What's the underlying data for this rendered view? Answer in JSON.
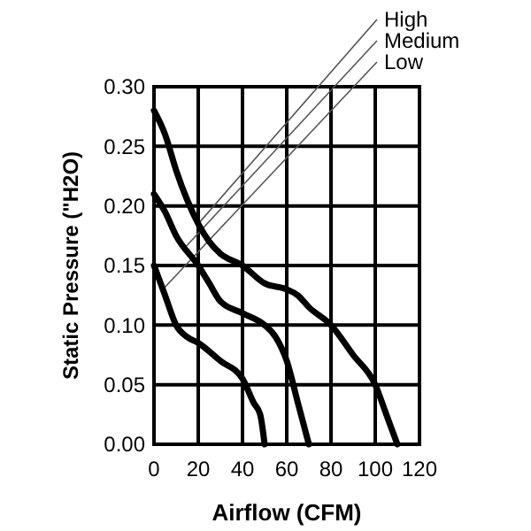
{
  "chart_data": {
    "type": "line",
    "xlabel": "Airflow (CFM)",
    "ylabel": "Static Pressure (\"H2O)",
    "xlim": [
      0,
      120
    ],
    "xticks": [
      0,
      20,
      40,
      60,
      80,
      100,
      120
    ],
    "ylim": [
      0,
      0.3
    ],
    "yticks": [
      {
        "value": 0,
        "label": "0.00"
      },
      {
        "value": 0.05,
        "label": "0.05"
      },
      {
        "value": 0.1,
        "label": "0.10"
      },
      {
        "value": 0.15,
        "label": "0.15"
      },
      {
        "value": 0.2,
        "label": "0.20"
      },
      {
        "value": 0.25,
        "label": "0.25"
      },
      {
        "value": 0.3,
        "label": "0.30"
      }
    ],
    "grid": true,
    "marker": "none",
    "line_style": "solid",
    "series": [
      {
        "name": "High",
        "color": "#000000",
        "x": [
          0,
          5,
          10,
          15,
          20,
          25,
          30,
          40,
          50,
          60,
          65,
          70,
          80,
          90,
          100,
          105,
          110
        ],
        "values": [
          0.28,
          0.26,
          0.23,
          0.205,
          0.185,
          0.17,
          0.16,
          0.15,
          0.135,
          0.13,
          0.125,
          0.115,
          0.1,
          0.075,
          0.05,
          0.025,
          0
        ]
      },
      {
        "name": "Medium",
        "color": "#000000",
        "x": [
          0,
          5,
          10,
          20,
          25,
          30,
          40,
          50,
          55,
          60,
          65,
          70
        ],
        "values": [
          0.21,
          0.195,
          0.175,
          0.15,
          0.135,
          0.12,
          0.11,
          0.1,
          0.09,
          0.07,
          0.035,
          0
        ]
      },
      {
        "name": "Low",
        "color": "#000000",
        "x": [
          0,
          5,
          10,
          15,
          20,
          30,
          40,
          45,
          48,
          50
        ],
        "values": [
          0.15,
          0.125,
          0.1,
          0.09,
          0.085,
          0.07,
          0.055,
          0.035,
          0.025,
          0
        ]
      }
    ]
  }
}
